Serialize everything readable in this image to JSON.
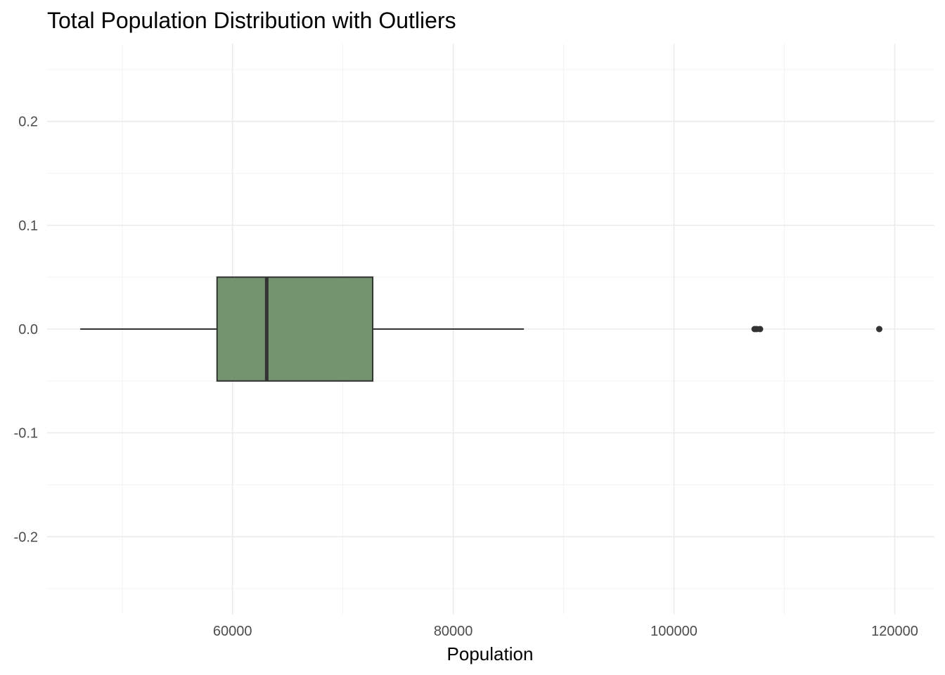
{
  "chart_data": {
    "type": "boxplot",
    "title": "Total Population Distribution with Outliers",
    "xlabel": "Population",
    "ylabel": "",
    "xlim": [
      43200,
      123600
    ],
    "ylim": [
      -0.275,
      0.275
    ],
    "x_ticks": [
      60000,
      80000,
      100000,
      120000
    ],
    "x_tick_labels": [
      "60000",
      "80000",
      "100000",
      "120000"
    ],
    "x_minor_ticks": [
      50000,
      70000,
      90000,
      110000
    ],
    "y_ticks": [
      -0.2,
      -0.1,
      0.0,
      0.1,
      0.2
    ],
    "y_tick_labels": [
      "-0.2",
      "-0.1",
      "0.0",
      "0.1",
      "0.2"
    ],
    "y_minor_ticks": [
      -0.25,
      -0.15,
      -0.05,
      0.05,
      0.15,
      0.25
    ],
    "grid": true,
    "box": {
      "whisker_low": 46200,
      "q1": 58600,
      "median": 63100,
      "q3": 72700,
      "whisker_high": 86400,
      "y_center": 0.0,
      "half_width": 0.05
    },
    "outliers": [
      107300,
      107500,
      107800,
      118600
    ],
    "colors": {
      "box_fill": "#73946e",
      "box_stroke": "#333333",
      "grid_major": "#ebebeb",
      "grid_minor": "#f3f3f3",
      "tick_text": "#4d4d4d"
    }
  }
}
